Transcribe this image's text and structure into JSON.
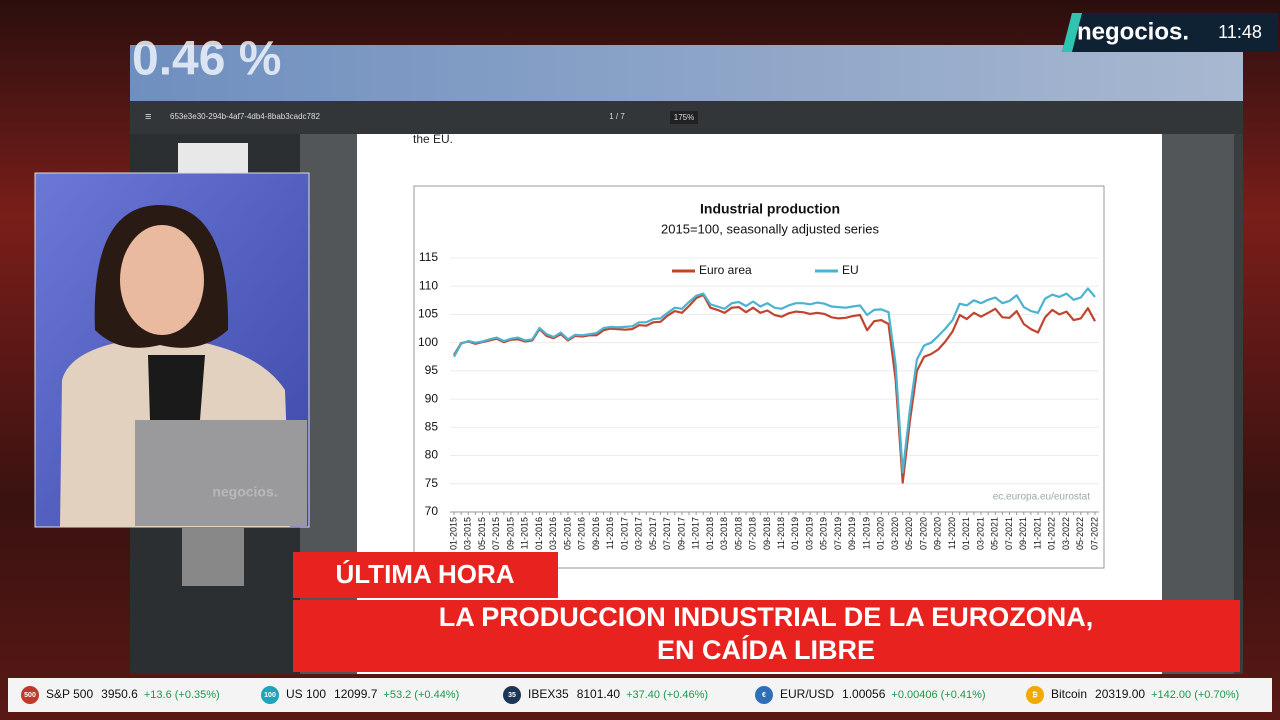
{
  "header": {
    "logo": "negocios.",
    "time": "11:48"
  },
  "backdrop_text": "0.46 %",
  "pdf_viewer": {
    "file_name": "653e3e30-294b-4af7-4db4-8bab3cadc782",
    "page": "1 / 7",
    "zoom": "175%",
    "page_text": "the EU."
  },
  "laptop_logo": "negocios.",
  "chart_data": {
    "type": "line",
    "title": "Industrial production",
    "subtitle": "2015=100, seasonally adjusted series",
    "source": "ec.europa.eu/eurostat",
    "categories": [
      "01-2015",
      null,
      "03-2015",
      null,
      "05-2015",
      null,
      "07-2015",
      null,
      "09-2015",
      null,
      "11-2015",
      null,
      "01-2016",
      null,
      "03-2016",
      null,
      "05-2016",
      null,
      "07-2016",
      null,
      "09-2016",
      null,
      "11-2016",
      null,
      "01-2017",
      null,
      "03-2017",
      null,
      "05-2017",
      null,
      "07-2017",
      null,
      "09-2017",
      null,
      "11-2017",
      null,
      "01-2018",
      null,
      "03-2018",
      null,
      "05-2018",
      null,
      "07-2018",
      null,
      "09-2018",
      null,
      "11-2018",
      null,
      "01-2019",
      null,
      "03-2019",
      null,
      "05-2019",
      null,
      "07-2019",
      null,
      "09-2019",
      null,
      "11-2019",
      null,
      "01-2020",
      null,
      "03-2020",
      null,
      "05-2020",
      null,
      "07-2020",
      null,
      "09-2020",
      null,
      "11-2020",
      null,
      "01-2021",
      null,
      "03-2021",
      null,
      "05-2021",
      null,
      "07-2021",
      null,
      "09-2021",
      null,
      "11-2021",
      null,
      "01-2022",
      null,
      "03-2022",
      null,
      "05-2022",
      null,
      "07-2022"
    ],
    "series": [
      {
        "name": "Euro area",
        "color": "#c0452f",
        "values": [
          97.8,
          99.9,
          100.2,
          99.8,
          100.1,
          100.4,
          100.7,
          100.1,
          100.5,
          100.6,
          100.2,
          100.4,
          102.4,
          101.2,
          100.8,
          101.5,
          100.4,
          101.2,
          101.1,
          101.3,
          101.3,
          102.2,
          102.5,
          102.4,
          102.3,
          102.4,
          103.1,
          103.0,
          103.6,
          103.7,
          104.8,
          105.6,
          105.3,
          106.5,
          107.9,
          108.5,
          106.2,
          105.8,
          105.3,
          106.2,
          106.3,
          105.4,
          106.2,
          105.3,
          105.7,
          104.9,
          104.6,
          105.2,
          105.5,
          105.4,
          105.1,
          105.3,
          105.1,
          104.5,
          104.3,
          104.4,
          104.7,
          104.9,
          102.2,
          103.8,
          104.0,
          103.3,
          93.5,
          75.2,
          86.0,
          95.0,
          97.5,
          98.0,
          98.8,
          100.2,
          102.0,
          104.9,
          104.2,
          105.3,
          104.6,
          105.3,
          106.0,
          104.5,
          104.4,
          105.6,
          103.3,
          102.4,
          101.8,
          104.5,
          105.8,
          105.0,
          105.5,
          104.0,
          104.3,
          106.1,
          103.8
        ]
      },
      {
        "name": "EU",
        "color": "#4bb3cf",
        "values": [
          97.5,
          99.8,
          100.3,
          100.0,
          100.2,
          100.6,
          100.9,
          100.3,
          100.7,
          100.9,
          100.4,
          100.6,
          102.6,
          101.5,
          101.0,
          101.8,
          100.6,
          101.4,
          101.3,
          101.5,
          101.7,
          102.6,
          102.8,
          102.7,
          102.8,
          102.9,
          103.6,
          103.6,
          104.2,
          104.3,
          105.3,
          106.2,
          106.0,
          107.2,
          108.3,
          108.7,
          106.8,
          106.4,
          106.0,
          107.0,
          107.2,
          106.5,
          107.3,
          106.4,
          107.0,
          106.2,
          106.0,
          106.6,
          107.0,
          107.0,
          106.8,
          107.1,
          106.9,
          106.4,
          106.3,
          106.2,
          106.4,
          106.6,
          104.9,
          105.8,
          105.9,
          105.4,
          96.2,
          77.0,
          88.0,
          97.0,
          99.5,
          100.0,
          101.2,
          102.5,
          104.0,
          106.9,
          106.6,
          107.5,
          107.0,
          107.6,
          108.0,
          107.0,
          107.4,
          108.4,
          106.3,
          105.6,
          105.3,
          107.8,
          108.5,
          108.1,
          108.7,
          107.6,
          108.0,
          109.6,
          108.1
        ]
      }
    ],
    "ylim": [
      70,
      115
    ],
    "yticks": [
      70,
      75,
      80,
      85,
      90,
      95,
      100,
      105,
      110,
      115
    ],
    "grid": true
  },
  "lower_third": {
    "tag": "ÚLTIMA HORA",
    "headline": [
      "LA PRODUCCION INDUSTRIAL DE LA EUROZONA,",
      "EN CAÍDA LIBRE"
    ]
  },
  "ticker": [
    {
      "icon": "500",
      "name": "S&P 500",
      "price": "3950.6",
      "change": "+13.6 (+0.35%)"
    },
    {
      "icon": "100",
      "name": "US 100",
      "price": "12099.7",
      "change": "+53.2 (+0.44%)"
    },
    {
      "icon": "35",
      "name": "IBEX35",
      "price": "8101.40",
      "change": "+37.40 (+0.46%)"
    },
    {
      "icon": "€",
      "name": "EUR/USD",
      "price": "1.00056",
      "change": "+0.00406 (+0.41%)"
    },
    {
      "icon": "₿",
      "name": "Bitcoin",
      "price": "20319.00",
      "change": "+142.00 (+0.70%)"
    }
  ]
}
